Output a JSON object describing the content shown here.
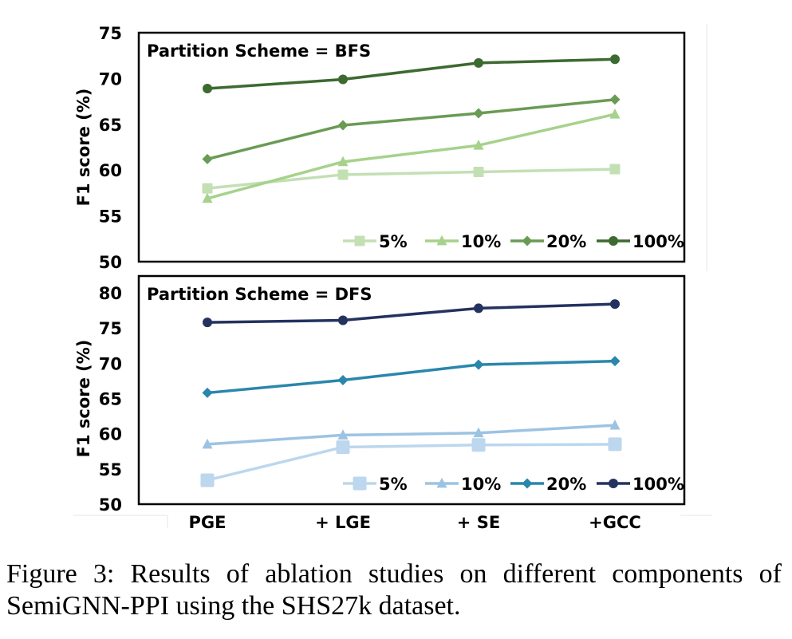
{
  "chart_data": [
    {
      "type": "line",
      "panel_label": "Partition Scheme = BFS",
      "ylabel": "F1 score (%)",
      "ylim": [
        50,
        75
      ],
      "yticks": [
        "50",
        "55",
        "60",
        "65",
        "70",
        "75"
      ],
      "categories": [
        "PGE",
        "+ LGE",
        "+ SE",
        "+GCC"
      ],
      "legend_position": "bottom-right",
      "series": [
        {
          "name": "5%",
          "marker": "square",
          "color": "#c3e0b4",
          "values": [
            58.0,
            59.5,
            59.8,
            60.1
          ]
        },
        {
          "name": "10%",
          "marker": "triangle",
          "color": "#a6d28c",
          "values": [
            56.9,
            60.9,
            62.7,
            66.1
          ]
        },
        {
          "name": "20%",
          "marker": "diamond",
          "color": "#6a9b55",
          "values": [
            61.2,
            64.9,
            66.2,
            67.7
          ]
        },
        {
          "name": "100%",
          "marker": "circle",
          "color": "#3c6a31",
          "values": [
            68.9,
            69.9,
            71.7,
            72.1
          ]
        }
      ]
    },
    {
      "type": "line",
      "panel_label": "Partition Scheme = DFS",
      "ylabel": "F1 score (%)",
      "ylim": [
        50,
        80
      ],
      "yticks": [
        "50",
        "55",
        "60",
        "65",
        "70",
        "75",
        "80"
      ],
      "categories": [
        "PGE",
        "+ LGE",
        "+ SE",
        "+GCC"
      ],
      "legend_position": "bottom-right",
      "series": [
        {
          "name": "5%",
          "marker": "square",
          "color": "#bcd7ee",
          "values": [
            53.4,
            58.1,
            58.4,
            58.5
          ]
        },
        {
          "name": "10%",
          "marker": "triangle",
          "color": "#9dc3e3",
          "values": [
            58.5,
            59.8,
            60.1,
            61.2
          ]
        },
        {
          "name": "20%",
          "marker": "diamond",
          "color": "#2a86ad",
          "values": [
            65.8,
            67.6,
            69.8,
            70.3
          ]
        },
        {
          "name": "100%",
          "marker": "circle",
          "color": "#24325f",
          "values": [
            75.8,
            76.1,
            77.8,
            78.4
          ]
        }
      ]
    }
  ],
  "caption": "Figure 3: Results of ablation studies on different components of SemiGNN-PPI using the SHS27k dataset."
}
